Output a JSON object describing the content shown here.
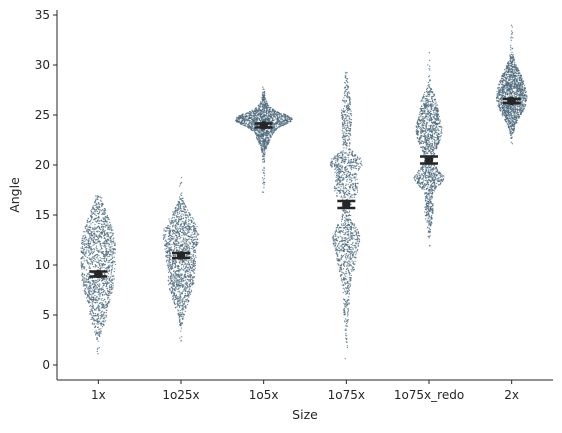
{
  "chart_data": {
    "type": "swarm",
    "xlabel": "Size",
    "ylabel": "Angle",
    "categories": [
      "1x",
      "1o25x",
      "1o5x",
      "1o75x",
      "1o75x_redo",
      "2x"
    ],
    "ylim": [
      -1.5,
      35.5
    ],
    "yticks": [
      0,
      5,
      10,
      15,
      20,
      25,
      30,
      35
    ],
    "grid": false,
    "legend": "none",
    "point_color": "#5f7f94",
    "point_edge": "#2e4a5c",
    "mean_color": "#262626",
    "groups": [
      {
        "category": "1x",
        "mean": 9.1,
        "ci": [
          8.85,
          9.35
        ],
        "min": 0.8,
        "max": 17.0,
        "modes": [
          [
            12.5,
            2.5,
            1.2
          ],
          [
            8.0,
            2.2,
            1.0
          ],
          [
            4.5,
            1.2,
            0.3
          ]
        ]
      },
      {
        "category": "1o25x",
        "mean": 10.95,
        "ci": [
          10.7,
          11.2
        ],
        "min": 1.0,
        "max": 18.8,
        "modes": [
          [
            13.5,
            1.6,
            1.2
          ],
          [
            10.0,
            2.0,
            1.0
          ],
          [
            7.0,
            1.6,
            0.5
          ]
        ]
      },
      {
        "category": "1o5x",
        "mean": 23.95,
        "ci": [
          23.75,
          24.15
        ],
        "min": 17.0,
        "max": 27.8,
        "modes": [
          [
            24.6,
            0.55,
            2.2
          ],
          [
            24.0,
            1.5,
            1.2
          ]
        ]
      },
      {
        "category": "1o75x",
        "mean": 16.05,
        "ci": [
          15.7,
          16.4
        ],
        "min": 0.2,
        "max": 29.3,
        "modes": [
          [
            20.3,
            0.7,
            1.0
          ],
          [
            17.8,
            1.3,
            0.9
          ],
          [
            13.0,
            1.2,
            0.9
          ],
          [
            10.3,
            1.5,
            0.6
          ],
          [
            24.5,
            2.5,
            0.4
          ],
          [
            6.0,
            2.2,
            0.2
          ]
        ]
      },
      {
        "category": "1o75x_redo",
        "mean": 20.5,
        "ci": [
          20.15,
          20.85
        ],
        "min": 11.5,
        "max": 31.3,
        "modes": [
          [
            18.7,
            0.8,
            1.0
          ],
          [
            23.5,
            1.8,
            0.9
          ],
          [
            15.5,
            1.4,
            0.3
          ],
          [
            26.5,
            0.8,
            0.3
          ]
        ]
      },
      {
        "category": "2x",
        "mean": 26.4,
        "ci": [
          26.2,
          26.6
        ],
        "min": 22.0,
        "max": 34.0,
        "modes": [
          [
            26.5,
            1.6,
            1.0
          ],
          [
            29.0,
            1.2,
            0.35
          ]
        ]
      }
    ]
  }
}
